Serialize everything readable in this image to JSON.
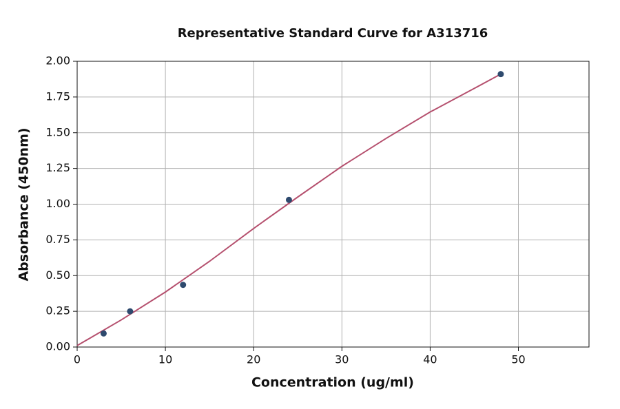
{
  "chart_data": {
    "type": "scatter",
    "title": "Representative Standard Curve for A313716",
    "x_label": "Concentration (ug/ml)",
    "y_label": "Absorbance (450nm)",
    "x": [
      3,
      6,
      12,
      24,
      48
    ],
    "values": [
      0.095,
      0.25,
      0.435,
      1.03,
      1.91
    ],
    "color": "#2e4a6e",
    "curve": {
      "x": [
        0,
        5,
        10,
        15,
        20,
        25,
        30,
        35,
        40,
        45,
        48
      ],
      "values": [
        0.01,
        0.19,
        0.385,
        0.6,
        0.83,
        1.05,
        1.265,
        1.46,
        1.645,
        1.81,
        1.91
      ],
      "color": "#b5506e"
    },
    "xlim": [
      0,
      58
    ],
    "ylim": [
      0,
      2
    ],
    "xticks": [
      0,
      10,
      20,
      30,
      40,
      50
    ],
    "yticks": [
      {
        "value": 0,
        "label": "0.00"
      },
      {
        "value": 0.25,
        "label": "0.25"
      },
      {
        "value": 0.5,
        "label": "0.50"
      },
      {
        "value": 0.75,
        "label": "0.75"
      },
      {
        "value": 1,
        "label": "1.00"
      },
      {
        "value": 1.25,
        "label": "1.25"
      },
      {
        "value": 1.5,
        "label": "1.50"
      },
      {
        "value": 1.75,
        "label": "1.75"
      },
      {
        "value": 2,
        "label": "2.00"
      }
    ],
    "grid": true
  }
}
